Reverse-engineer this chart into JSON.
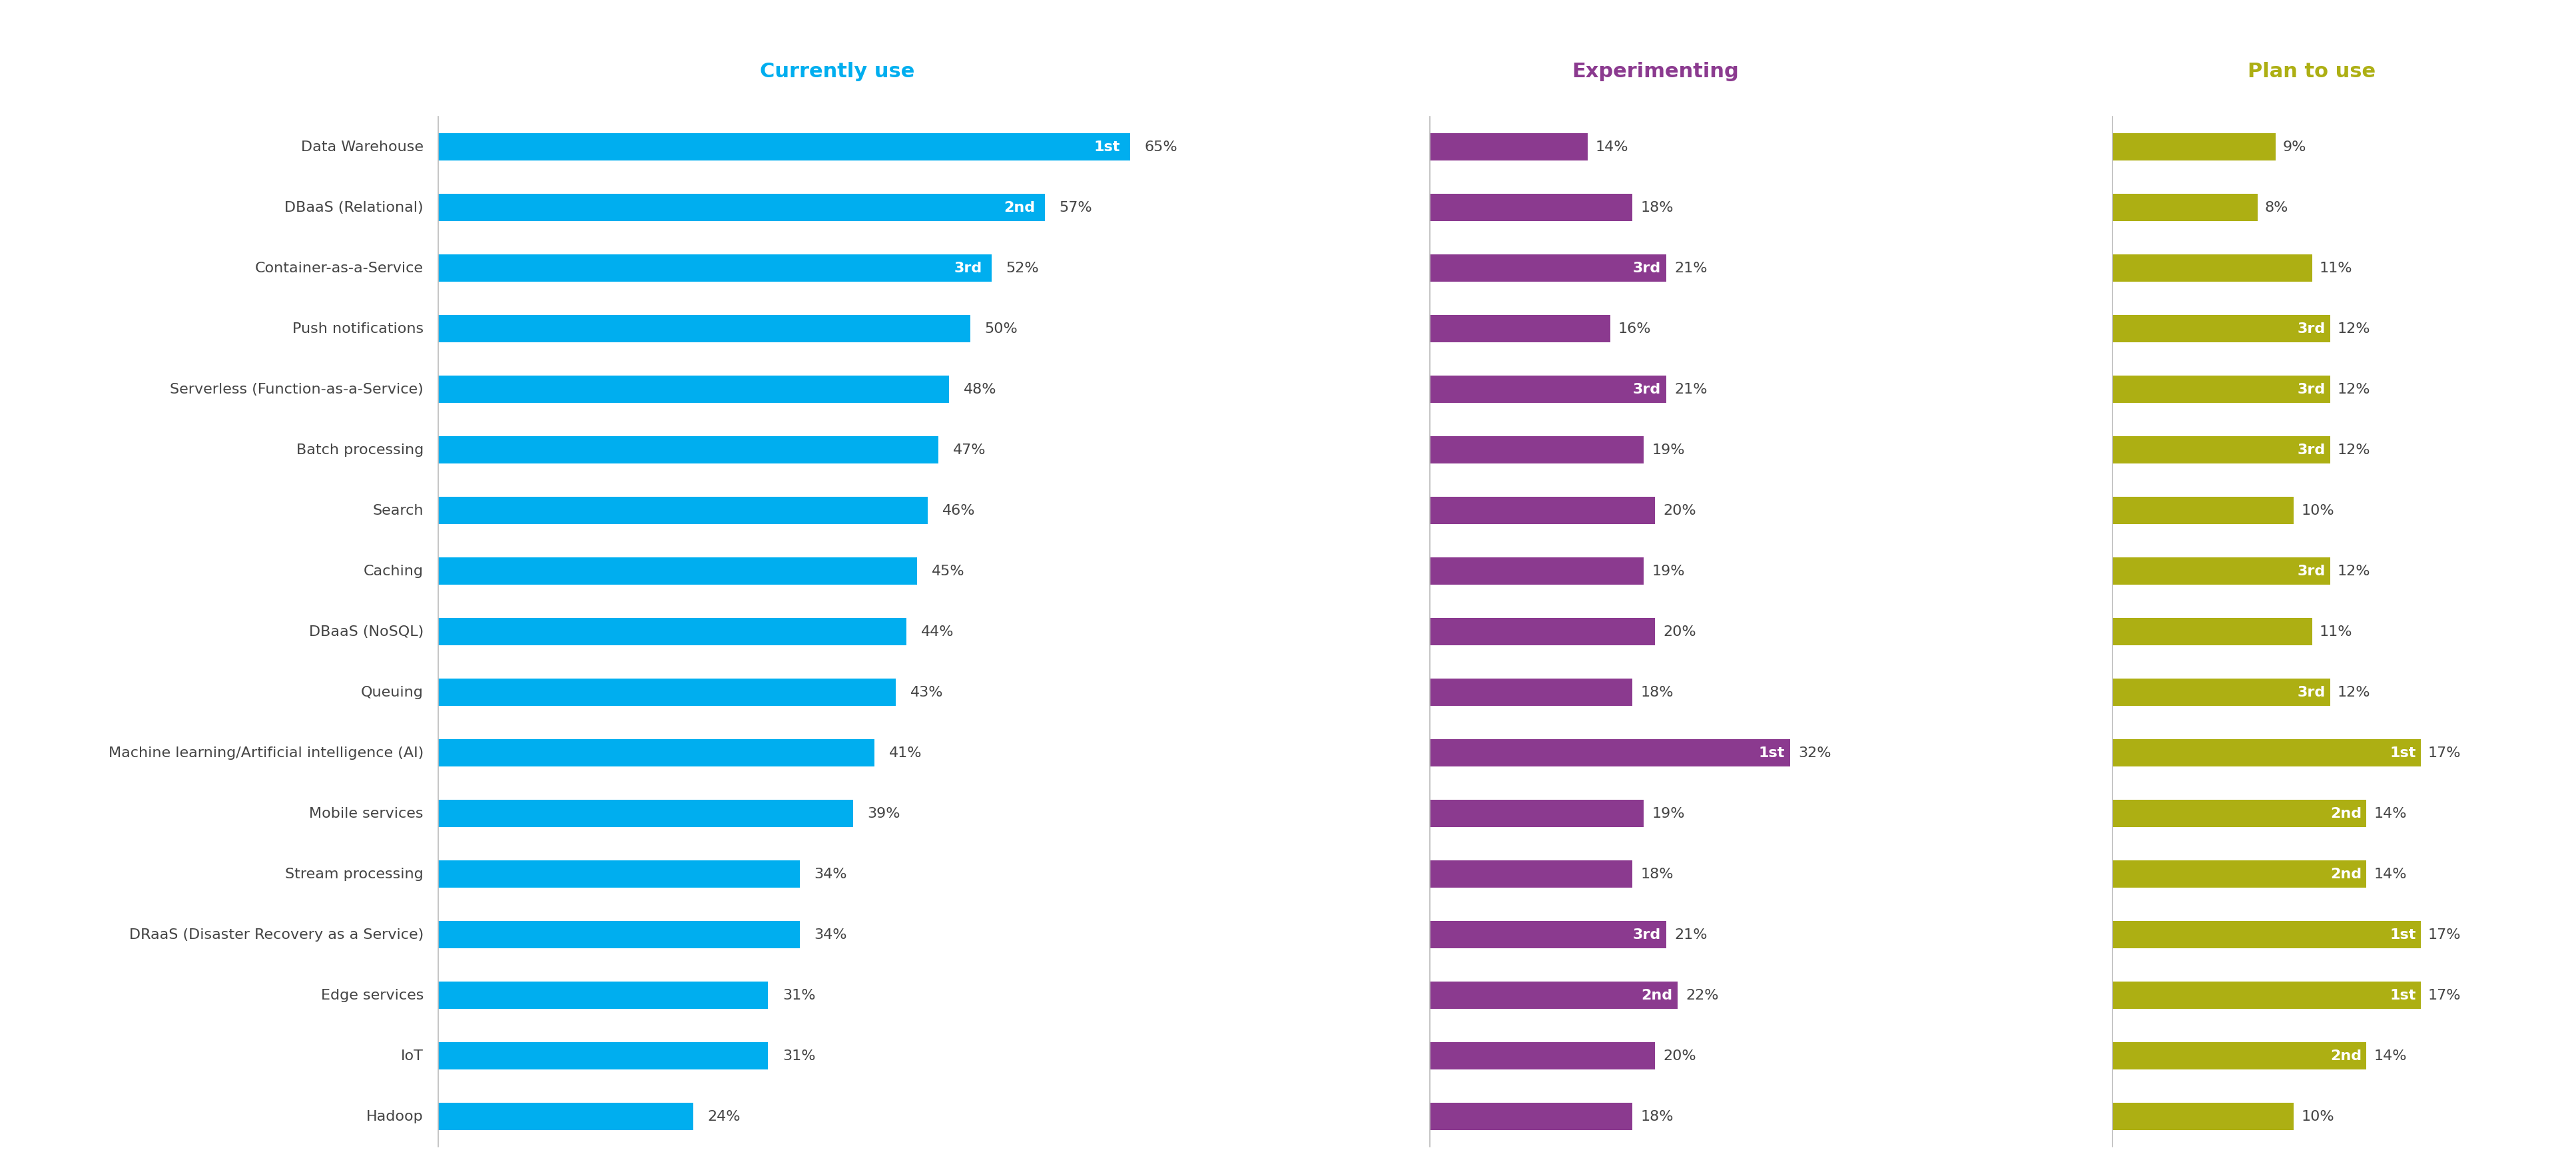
{
  "categories": [
    "Data Warehouse",
    "DBaaS (Relational)",
    "Container-as-a-Service",
    "Push notifications",
    "Serverless (Function-as-a-Service)",
    "Batch processing",
    "Search",
    "Caching",
    "DBaaS (NoSQL)",
    "Queuing",
    "Machine learning/Artificial intelligence (AI)",
    "Mobile services",
    "Stream processing",
    "DRaaS (Disaster Recovery as a Service)",
    "Edge services",
    "IoT",
    "Hadoop"
  ],
  "currently_use": [
    65,
    57,
    52,
    50,
    48,
    47,
    46,
    45,
    44,
    43,
    41,
    39,
    34,
    34,
    31,
    31,
    24
  ],
  "experimenting": [
    14,
    18,
    21,
    16,
    21,
    19,
    20,
    19,
    20,
    18,
    32,
    19,
    18,
    21,
    22,
    20,
    18
  ],
  "plan_to_use": [
    9,
    8,
    11,
    12,
    12,
    12,
    10,
    12,
    11,
    12,
    17,
    14,
    14,
    17,
    17,
    14,
    10
  ],
  "currently_use_rank": [
    "1st",
    "2nd",
    "3rd",
    null,
    null,
    null,
    null,
    null,
    null,
    null,
    null,
    null,
    null,
    null,
    null,
    null,
    null
  ],
  "experimenting_rank": [
    null,
    null,
    "3rd",
    null,
    "3rd",
    null,
    null,
    null,
    null,
    null,
    "1st",
    null,
    null,
    "3rd",
    "2nd",
    null,
    null
  ],
  "plan_to_use_rank": [
    null,
    null,
    null,
    "3rd",
    "3rd",
    "3rd",
    null,
    "3rd",
    null,
    "3rd",
    "1st",
    "2nd",
    "2nd",
    "1st",
    "1st",
    "2nd",
    null
  ],
  "currently_use_color": "#00AEEF",
  "experimenting_color": "#8B3A8F",
  "plan_to_use_color": "#ADAF13",
  "currently_use_header_color": "#00AEEF",
  "experimenting_header_color": "#8B3A8F",
  "plan_to_use_header_color": "#ADAF13",
  "label_color": "#444444",
  "value_label_color": "#444444",
  "col1_header": "Currently use",
  "col2_header": "Experimenting",
  "col3_header": "Plan to use",
  "currently_use_max": 75,
  "experimenting_max": 40,
  "plan_to_use_max": 22
}
